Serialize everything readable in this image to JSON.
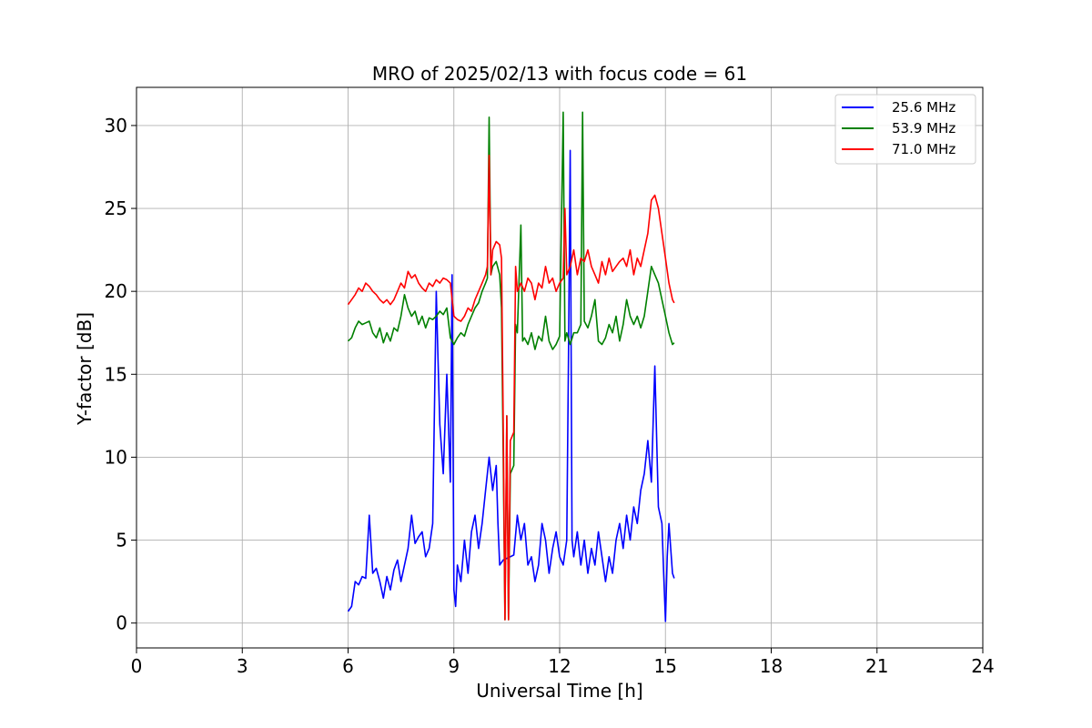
{
  "chart_data": {
    "type": "line",
    "title": "MRO of 2025/02/13 with focus code = 61",
    "xlabel": "Universal Time [h]",
    "ylabel": "Y-factor [dB]",
    "xlim": [
      0,
      24
    ],
    "ylim": [
      -1.5,
      32.3
    ],
    "xticks": [
      0,
      3,
      6,
      9,
      12,
      15,
      18,
      21,
      24
    ],
    "yticks": [
      0,
      5,
      10,
      15,
      20,
      25,
      30
    ],
    "grid": true,
    "legend_position": "top-right",
    "series": [
      {
        "name": "25.6 MHz",
        "color": "#0000ff",
        "x": [
          6.0,
          6.1,
          6.2,
          6.3,
          6.4,
          6.5,
          6.6,
          6.7,
          6.8,
          6.9,
          7.0,
          7.1,
          7.2,
          7.3,
          7.4,
          7.5,
          7.6,
          7.7,
          7.8,
          7.9,
          8.0,
          8.1,
          8.2,
          8.3,
          8.4,
          8.5,
          8.55,
          8.6,
          8.7,
          8.8,
          8.9,
          8.95,
          9.0,
          9.05,
          9.1,
          9.2,
          9.3,
          9.4,
          9.5,
          9.6,
          9.7,
          9.8,
          9.9,
          10.0,
          10.1,
          10.2,
          10.25,
          10.3,
          10.4,
          10.5,
          10.6,
          10.7,
          10.8,
          10.9,
          11.0,
          11.1,
          11.2,
          11.3,
          11.4,
          11.5,
          11.6,
          11.7,
          11.8,
          11.9,
          12.0,
          12.1,
          12.2,
          12.25,
          12.3,
          12.35,
          12.4,
          12.5,
          12.6,
          12.7,
          12.8,
          12.9,
          13.0,
          13.1,
          13.2,
          13.3,
          13.4,
          13.5,
          13.6,
          13.7,
          13.8,
          13.9,
          14.0,
          14.1,
          14.2,
          14.3,
          14.4,
          14.5,
          14.6,
          14.7,
          14.8,
          14.9,
          14.95,
          15.0,
          15.05,
          15.1,
          15.2,
          15.25
        ],
        "y": [
          0.7,
          1.0,
          2.5,
          2.3,
          2.8,
          2.7,
          6.5,
          3.0,
          3.3,
          2.5,
          1.5,
          2.8,
          2.0,
          3.2,
          3.8,
          2.5,
          3.5,
          4.5,
          6.5,
          4.8,
          5.2,
          5.5,
          4.0,
          4.5,
          6.0,
          20.0,
          16.0,
          12.0,
          9.0,
          15.0,
          8.5,
          21.0,
          2.0,
          1.0,
          3.5,
          2.5,
          5.0,
          3.0,
          5.5,
          6.5,
          4.5,
          6.0,
          8.0,
          10.0,
          8.0,
          9.5,
          6.0,
          3.5,
          3.8,
          3.9,
          4.0,
          4.1,
          6.5,
          5.0,
          6.0,
          3.5,
          4.0,
          2.5,
          3.5,
          6.0,
          5.0,
          3.0,
          4.5,
          5.5,
          4.0,
          3.5,
          5.0,
          16.0,
          28.5,
          5.0,
          4.0,
          5.5,
          3.5,
          5.0,
          3.0,
          4.5,
          3.5,
          5.5,
          4.0,
          2.5,
          4.0,
          3.0,
          5.0,
          6.0,
          4.5,
          6.5,
          5.0,
          7.0,
          6.0,
          8.0,
          9.0,
          11.0,
          8.5,
          15.5,
          7.0,
          6.0,
          3.0,
          0.1,
          4.0,
          6.0,
          3.0,
          2.7
        ]
      },
      {
        "name": "53.9 MHz",
        "color": "#008000",
        "x": [
          6.0,
          6.1,
          6.2,
          6.3,
          6.4,
          6.5,
          6.6,
          6.7,
          6.8,
          6.9,
          7.0,
          7.1,
          7.2,
          7.3,
          7.4,
          7.5,
          7.6,
          7.7,
          7.8,
          7.9,
          8.0,
          8.1,
          8.2,
          8.3,
          8.4,
          8.5,
          8.6,
          8.7,
          8.8,
          8.9,
          9.0,
          9.1,
          9.2,
          9.3,
          9.4,
          9.5,
          9.6,
          9.7,
          9.8,
          9.9,
          9.95,
          10.0,
          10.05,
          10.1,
          10.2,
          10.3,
          10.35,
          10.4,
          10.45,
          10.5,
          10.55,
          10.6,
          10.7,
          10.75,
          10.8,
          10.9,
          10.95,
          11.0,
          11.1,
          11.2,
          11.3,
          11.4,
          11.5,
          11.6,
          11.7,
          11.8,
          11.9,
          12.0,
          12.1,
          12.15,
          12.2,
          12.3,
          12.4,
          12.5,
          12.6,
          12.65,
          12.7,
          12.8,
          12.9,
          13.0,
          13.1,
          13.2,
          13.3,
          13.4,
          13.5,
          13.6,
          13.7,
          13.8,
          13.9,
          14.0,
          14.1,
          14.2,
          14.3,
          14.4,
          14.5,
          14.6,
          14.7,
          14.8,
          14.9,
          15.0,
          15.1,
          15.2,
          15.25
        ],
        "y": [
          17.0,
          17.2,
          17.8,
          18.2,
          18.0,
          18.1,
          18.2,
          17.5,
          17.2,
          17.8,
          16.9,
          17.5,
          17.0,
          17.8,
          17.6,
          18.5,
          19.8,
          19.0,
          18.5,
          18.8,
          18.0,
          18.5,
          17.8,
          18.4,
          18.3,
          18.5,
          18.8,
          18.6,
          19.0,
          17.2,
          16.8,
          17.2,
          17.5,
          17.3,
          18.0,
          18.5,
          19.0,
          19.3,
          20.0,
          20.5,
          20.8,
          30.5,
          21.0,
          21.5,
          21.8,
          21.0,
          19.0,
          10.0,
          0.2,
          12.5,
          0.2,
          9.0,
          9.5,
          18.0,
          17.5,
          24.0,
          17.0,
          17.2,
          16.8,
          17.5,
          16.5,
          17.3,
          17.0,
          18.5,
          17.0,
          16.5,
          16.8,
          17.3,
          30.8,
          17.0,
          17.5,
          16.8,
          17.5,
          17.5,
          18.0,
          30.8,
          18.2,
          17.8,
          18.5,
          19.5,
          17.0,
          16.8,
          17.2,
          18.0,
          17.5,
          18.5,
          17.0,
          18.0,
          19.5,
          18.5,
          18.0,
          18.5,
          17.8,
          18.5,
          20.0,
          21.5,
          21.0,
          20.5,
          19.5,
          18.5,
          17.5,
          16.8,
          16.9
        ]
      },
      {
        "name": "71.0 MHz",
        "color": "#ff0000",
        "x": [
          6.0,
          6.1,
          6.2,
          6.3,
          6.4,
          6.5,
          6.6,
          6.7,
          6.8,
          6.9,
          7.0,
          7.1,
          7.2,
          7.3,
          7.4,
          7.5,
          7.6,
          7.7,
          7.8,
          7.9,
          8.0,
          8.1,
          8.2,
          8.3,
          8.4,
          8.5,
          8.6,
          8.7,
          8.8,
          8.9,
          9.0,
          9.1,
          9.2,
          9.3,
          9.4,
          9.5,
          9.6,
          9.7,
          9.8,
          9.9,
          9.95,
          10.0,
          10.05,
          10.1,
          10.2,
          10.3,
          10.35,
          10.4,
          10.45,
          10.5,
          10.55,
          10.6,
          10.7,
          10.75,
          10.8,
          10.9,
          11.0,
          11.1,
          11.2,
          11.3,
          11.4,
          11.5,
          11.6,
          11.7,
          11.8,
          11.9,
          12.0,
          12.1,
          12.15,
          12.2,
          12.3,
          12.4,
          12.5,
          12.6,
          12.7,
          12.8,
          12.9,
          13.0,
          13.1,
          13.2,
          13.3,
          13.4,
          13.5,
          13.6,
          13.7,
          13.8,
          13.9,
          14.0,
          14.1,
          14.2,
          14.3,
          14.4,
          14.5,
          14.6,
          14.7,
          14.8,
          14.9,
          15.0,
          15.1,
          15.2,
          15.25
        ],
        "y": [
          19.2,
          19.5,
          19.8,
          20.2,
          20.0,
          20.5,
          20.3,
          20.0,
          19.8,
          19.5,
          19.3,
          19.5,
          19.2,
          19.5,
          20.0,
          20.5,
          20.2,
          21.2,
          20.8,
          21.0,
          20.5,
          20.2,
          20.0,
          20.5,
          20.3,
          20.7,
          20.5,
          20.8,
          20.7,
          20.5,
          18.5,
          18.3,
          18.2,
          18.5,
          19.0,
          18.8,
          19.5,
          20.0,
          20.5,
          21.0,
          21.5,
          28.2,
          21.0,
          22.5,
          23.0,
          22.8,
          22.0,
          12.0,
          0.2,
          12.5,
          0.2,
          11.0,
          11.5,
          21.5,
          20.0,
          20.5,
          20.0,
          20.8,
          20.5,
          19.5,
          20.5,
          20.2,
          21.5,
          20.5,
          20.8,
          20.0,
          20.5,
          20.8,
          25.0,
          21.0,
          21.5,
          22.5,
          21.0,
          22.0,
          21.8,
          22.5,
          21.5,
          21.0,
          20.5,
          21.8,
          21.0,
          22.0,
          21.2,
          21.5,
          21.8,
          22.0,
          21.5,
          22.5,
          21.0,
          22.0,
          21.5,
          22.5,
          23.5,
          25.5,
          25.8,
          25.0,
          23.5,
          22.0,
          20.5,
          19.5,
          19.3
        ]
      }
    ]
  }
}
